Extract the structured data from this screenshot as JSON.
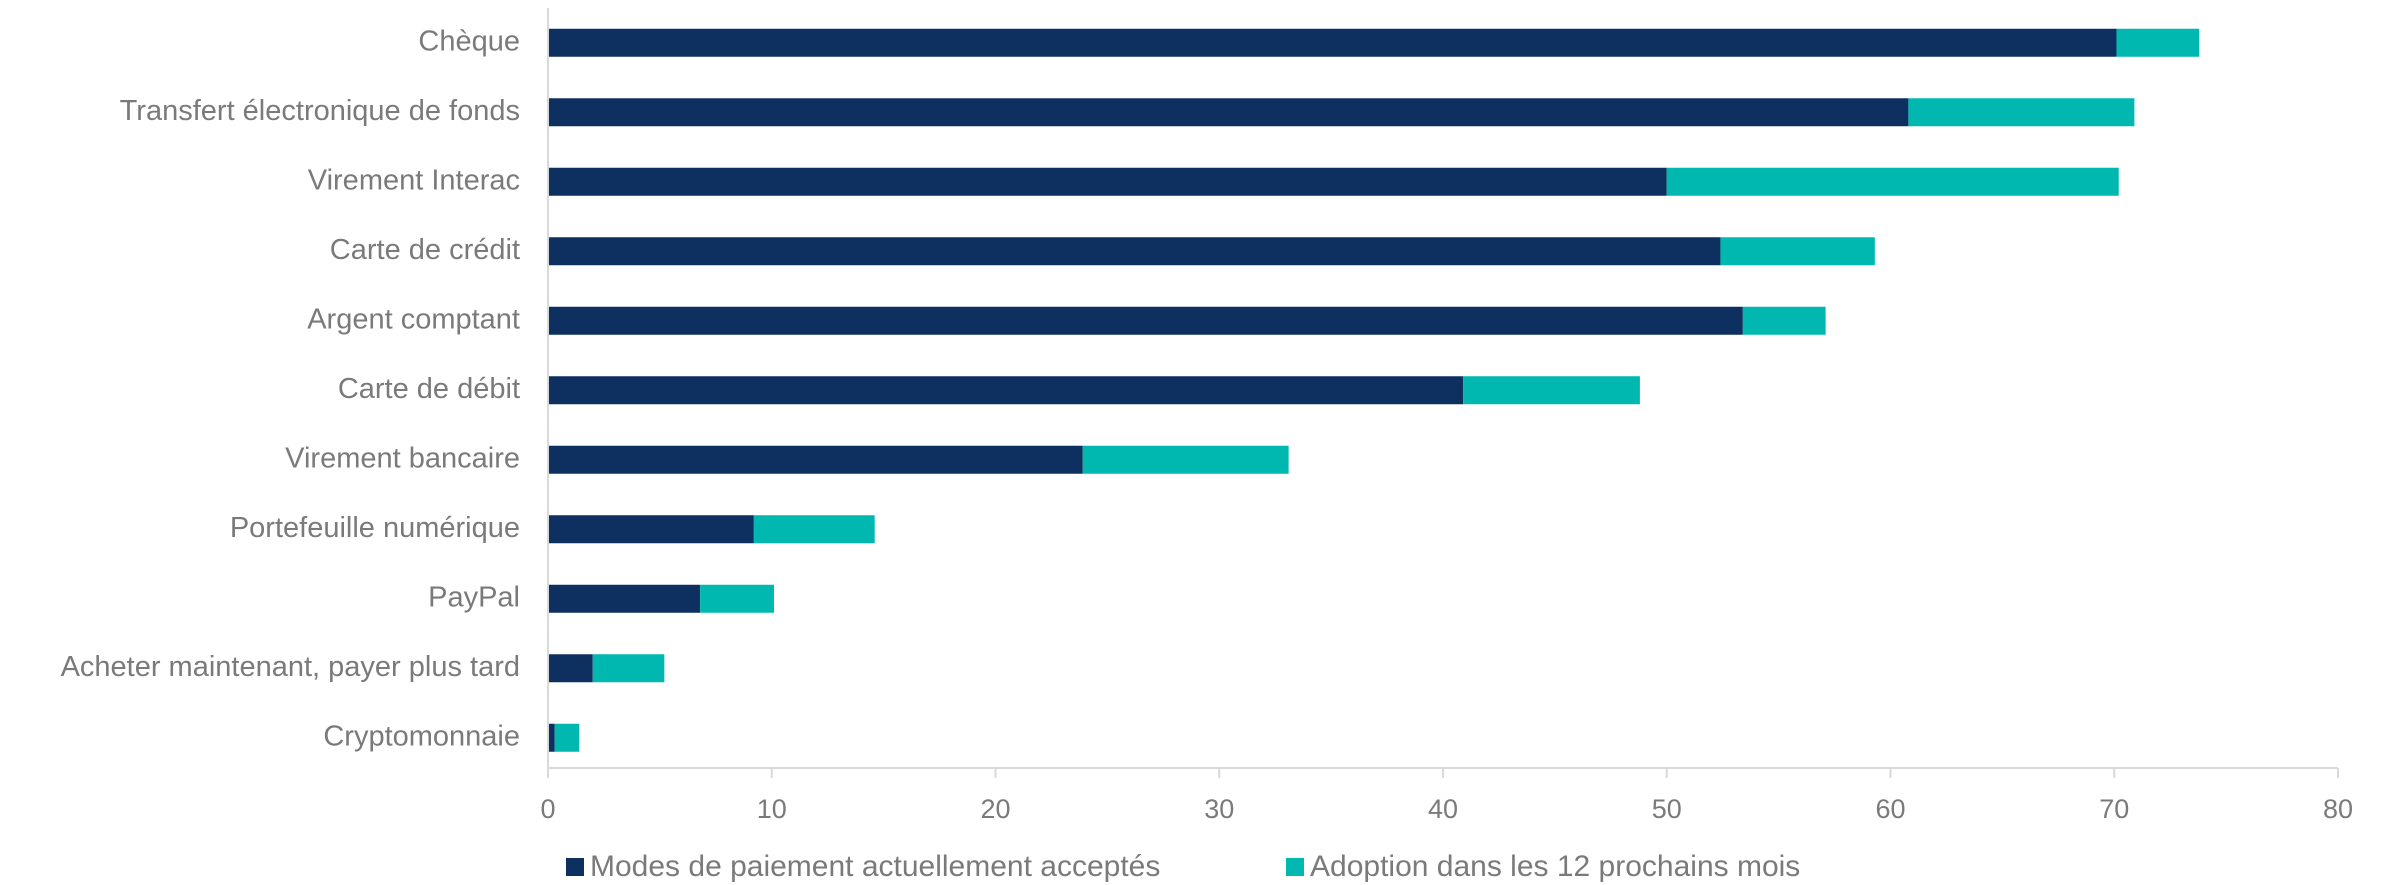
{
  "chart_data": {
    "type": "bar",
    "orientation": "horizontal",
    "stacked": true,
    "categories": [
      "Chèque",
      "Transfert électronique de fonds",
      "Virement Interac",
      "Carte de crédit",
      "Argent comptant",
      "Carte de débit",
      "Virement bancaire",
      "Portefeuille numérique",
      "PayPal",
      "Acheter maintenant, payer plus tard",
      "Cryptomonnaie"
    ],
    "series": [
      {
        "name": "Modes de paiement actuellement acceptés",
        "color": "#0e3060",
        "values": [
          70.1,
          60.8,
          50.0,
          52.4,
          53.4,
          40.9,
          23.9,
          9.2,
          6.8,
          2.0,
          0.3
        ]
      },
      {
        "name": "Adoption dans les 12 prochains mois",
        "color": "#00b8b0",
        "values": [
          3.7,
          10.1,
          20.2,
          6.9,
          3.7,
          7.9,
          9.2,
          5.4,
          3.3,
          3.2,
          1.1
        ]
      }
    ],
    "xlim": [
      0,
      80
    ],
    "xticks": [
      0,
      10,
      20,
      30,
      40,
      50,
      60,
      70,
      80
    ],
    "title": "",
    "xlabel": "",
    "ylabel": "",
    "grid": false,
    "legend_position": "bottom"
  }
}
